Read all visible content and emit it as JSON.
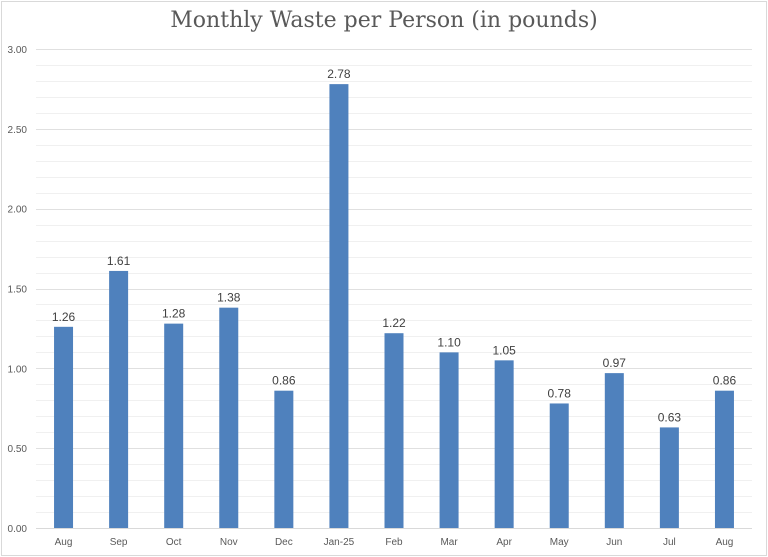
{
  "chart_data": {
    "type": "bar",
    "title": "Monthly Waste per Person (in pounds)",
    "xlabel": "",
    "ylabel": "",
    "categories": [
      "Aug",
      "Sep",
      "Oct",
      "Nov",
      "Dec",
      "Jan-25",
      "Feb",
      "Mar",
      "Apr",
      "May",
      "Jun",
      "Jul",
      "Aug"
    ],
    "values": [
      1.26,
      1.61,
      1.28,
      1.38,
      0.86,
      2.78,
      1.22,
      1.1,
      1.05,
      0.78,
      0.97,
      0.63,
      0.86
    ],
    "data_labels": [
      "1.26",
      "1.61",
      "1.28",
      "1.38",
      "0.86",
      "2.78",
      "1.22",
      "1.10",
      "1.05",
      "0.78",
      "0.97",
      "0.63",
      "0.86"
    ],
    "ylim": [
      0,
      3
    ],
    "yticks": [
      "0.00",
      "0.50",
      "1.00",
      "1.50",
      "2.00",
      "2.50",
      "3.00"
    ],
    "ytick_values": [
      0,
      0.5,
      1,
      1.5,
      2,
      2.5,
      3
    ],
    "minor_grid_step": 0.1,
    "grid": true,
    "legend": "none",
    "bar_color": "#4f81bd"
  }
}
